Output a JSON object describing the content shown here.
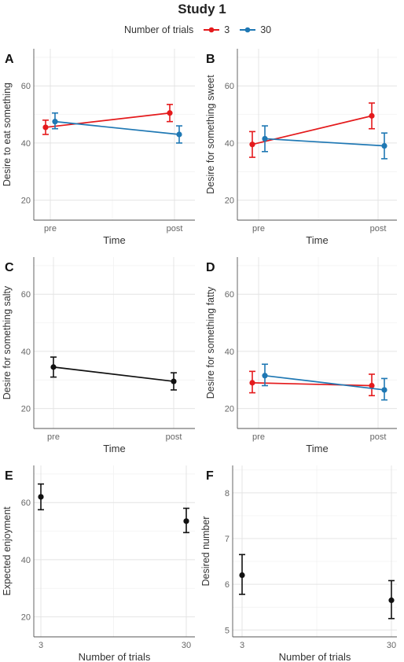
{
  "title": "Study 1",
  "legend": {
    "title": "Number of trials",
    "items": [
      {
        "label": "3",
        "color": "#e41a1c"
      },
      {
        "label": "30",
        "color": "#1f78b4"
      }
    ]
  },
  "chart_data": [
    {
      "panel": "A",
      "type": "line",
      "xlabel": "Time",
      "ylabel": "Desire to eat something",
      "categories": [
        "pre",
        "post"
      ],
      "ylim": [
        13,
        73
      ],
      "yticks": [
        20,
        40,
        60
      ],
      "series": [
        {
          "name": "3",
          "color": "#e41a1c",
          "values": [
            45.5,
            50.5
          ],
          "errors": [
            [
              43,
              48
            ],
            [
              47.5,
              53.5
            ]
          ]
        },
        {
          "name": "30",
          "color": "#1f78b4",
          "values": [
            47.5,
            43
          ],
          "errors": [
            [
              45,
              50.5
            ],
            [
              40,
              46
            ]
          ]
        }
      ]
    },
    {
      "panel": "B",
      "type": "line",
      "xlabel": "Time",
      "ylabel": "Desire for something sweet",
      "categories": [
        "pre",
        "post"
      ],
      "ylim": [
        13,
        73
      ],
      "yticks": [
        20,
        40,
        60
      ],
      "series": [
        {
          "name": "3",
          "color": "#e41a1c",
          "values": [
            39.5,
            49.5
          ],
          "errors": [
            [
              35,
              44
            ],
            [
              45,
              54
            ]
          ]
        },
        {
          "name": "30",
          "color": "#1f78b4",
          "values": [
            41.5,
            39
          ],
          "errors": [
            [
              37,
              46
            ],
            [
              34.5,
              43.5
            ]
          ]
        }
      ]
    },
    {
      "panel": "C",
      "type": "line",
      "xlabel": "Time",
      "ylabel": "Desire for something salty",
      "categories": [
        "pre",
        "post"
      ],
      "ylim": [
        13,
        73
      ],
      "yticks": [
        20,
        40,
        60
      ],
      "series": [
        {
          "color": "#111111",
          "values": [
            34.5,
            29.5
          ],
          "errors": [
            [
              31,
              38
            ],
            [
              26.5,
              32.5
            ]
          ]
        }
      ]
    },
    {
      "panel": "D",
      "type": "line",
      "xlabel": "Time",
      "ylabel": "Desire for something fatty",
      "categories": [
        "pre",
        "post"
      ],
      "ylim": [
        13,
        73
      ],
      "yticks": [
        20,
        40,
        60
      ],
      "series": [
        {
          "name": "3",
          "color": "#e41a1c",
          "values": [
            29,
            28
          ],
          "errors": [
            [
              25.5,
              33
            ],
            [
              24.5,
              32
            ]
          ]
        },
        {
          "name": "30",
          "color": "#1f78b4",
          "values": [
            31.5,
            26.5
          ],
          "errors": [
            [
              28,
              35.5
            ],
            [
              23,
              30.5
            ]
          ]
        }
      ]
    },
    {
      "panel": "E",
      "type": "scatter",
      "xlabel": "Number of trials",
      "ylabel": "Expected enjoyment",
      "categories": [
        "3",
        "30"
      ],
      "ylim": [
        13,
        73
      ],
      "yticks": [
        20,
        40,
        60
      ],
      "series": [
        {
          "color": "#111111",
          "values": [
            62,
            53.5
          ],
          "errors": [
            [
              57.5,
              66.5
            ],
            [
              49.5,
              58
            ]
          ]
        }
      ]
    },
    {
      "panel": "F",
      "type": "scatter",
      "xlabel": "Number of trials",
      "ylabel": "Desired number",
      "categories": [
        "3",
        "30"
      ],
      "ylim": [
        4.85,
        8.6
      ],
      "yticks": [
        5,
        6,
        7,
        8
      ],
      "series": [
        {
          "color": "#111111",
          "values": [
            6.2,
            5.65
          ],
          "errors": [
            [
              5.78,
              6.65
            ],
            [
              5.25,
              6.08
            ]
          ]
        }
      ]
    }
  ]
}
